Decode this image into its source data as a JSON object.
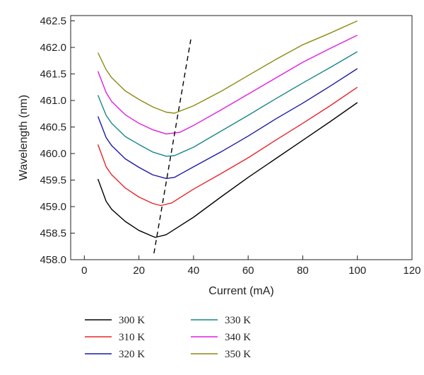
{
  "chart_data": {
    "type": "line",
    "xlabel": "Current (mA)",
    "ylabel": "Wavelength (nm)",
    "xlim": [
      -5,
      120
    ],
    "ylim": [
      458.0,
      462.6
    ],
    "x_ticks": [
      0,
      20,
      40,
      60,
      80,
      100,
      120
    ],
    "y_ticks": [
      458.0,
      458.5,
      459.0,
      459.5,
      460.0,
      460.5,
      461.0,
      461.5,
      462.0,
      462.5
    ],
    "x_tick_labels": [
      "0",
      "20",
      "40",
      "60",
      "80",
      "100",
      "120"
    ],
    "y_tick_labels": [
      "458.0",
      "458.5",
      "459.0",
      "459.5",
      "460.0",
      "460.5",
      "461.0",
      "461.5",
      "462.0",
      "462.5"
    ],
    "grid": false,
    "legend_position": "bottom",
    "series": [
      {
        "name": "300 K",
        "color": "#000000",
        "x": [
          5,
          8,
          10,
          15,
          20,
          25,
          26,
          30,
          40,
          50,
          60,
          70,
          80,
          90,
          100
        ],
        "y": [
          459.52,
          459.1,
          458.95,
          458.72,
          458.55,
          458.44,
          458.42,
          458.47,
          458.8,
          459.18,
          459.55,
          459.9,
          460.25,
          460.6,
          460.96
        ]
      },
      {
        "name": "310 K",
        "color": "#e8232a",
        "x": [
          5,
          8,
          10,
          15,
          20,
          25,
          28,
          32,
          40,
          50,
          60,
          70,
          80,
          90,
          100
        ],
        "y": [
          460.17,
          459.75,
          459.6,
          459.35,
          459.18,
          459.06,
          459.02,
          459.07,
          459.33,
          459.62,
          459.92,
          460.25,
          460.57,
          460.9,
          461.25
        ]
      },
      {
        "name": "320 K",
        "color": "#1a1aa8",
        "x": [
          5,
          8,
          10,
          15,
          20,
          25,
          30,
          33,
          40,
          50,
          60,
          70,
          80,
          90,
          100
        ],
        "y": [
          460.7,
          460.3,
          460.15,
          459.9,
          459.74,
          459.6,
          459.53,
          459.55,
          459.75,
          460.03,
          460.33,
          460.65,
          460.95,
          461.27,
          461.6
        ]
      },
      {
        "name": "330 K",
        "color": "#178787",
        "x": [
          5,
          8,
          10,
          15,
          20,
          25,
          30,
          33,
          40,
          50,
          60,
          70,
          80,
          90,
          100
        ],
        "y": [
          461.1,
          460.72,
          460.57,
          460.32,
          460.17,
          460.03,
          459.95,
          459.96,
          460.12,
          460.42,
          460.72,
          461.03,
          461.33,
          461.62,
          461.92
        ]
      },
      {
        "name": "340 K",
        "color": "#e01ee0",
        "x": [
          5,
          8,
          10,
          15,
          20,
          25,
          30,
          35,
          40,
          50,
          60,
          70,
          80,
          90,
          100
        ],
        "y": [
          461.55,
          461.15,
          460.98,
          460.73,
          460.57,
          460.45,
          460.37,
          460.4,
          460.53,
          460.82,
          461.12,
          461.42,
          461.72,
          461.98,
          462.23
        ]
      },
      {
        "name": "350 K",
        "color": "#8c8a10",
        "x": [
          5,
          8,
          10,
          15,
          20,
          25,
          30,
          33,
          40,
          50,
          60,
          70,
          80,
          90,
          100
        ],
        "y": [
          461.9,
          461.58,
          461.43,
          461.18,
          461.02,
          460.88,
          460.78,
          460.76,
          460.9,
          461.17,
          461.47,
          461.77,
          462.05,
          462.27,
          462.5
        ]
      }
    ],
    "annotations": [
      {
        "type": "dashed-line",
        "x": [
          25.5,
          39
        ],
        "y": [
          458.12,
          462.15
        ]
      }
    ]
  }
}
